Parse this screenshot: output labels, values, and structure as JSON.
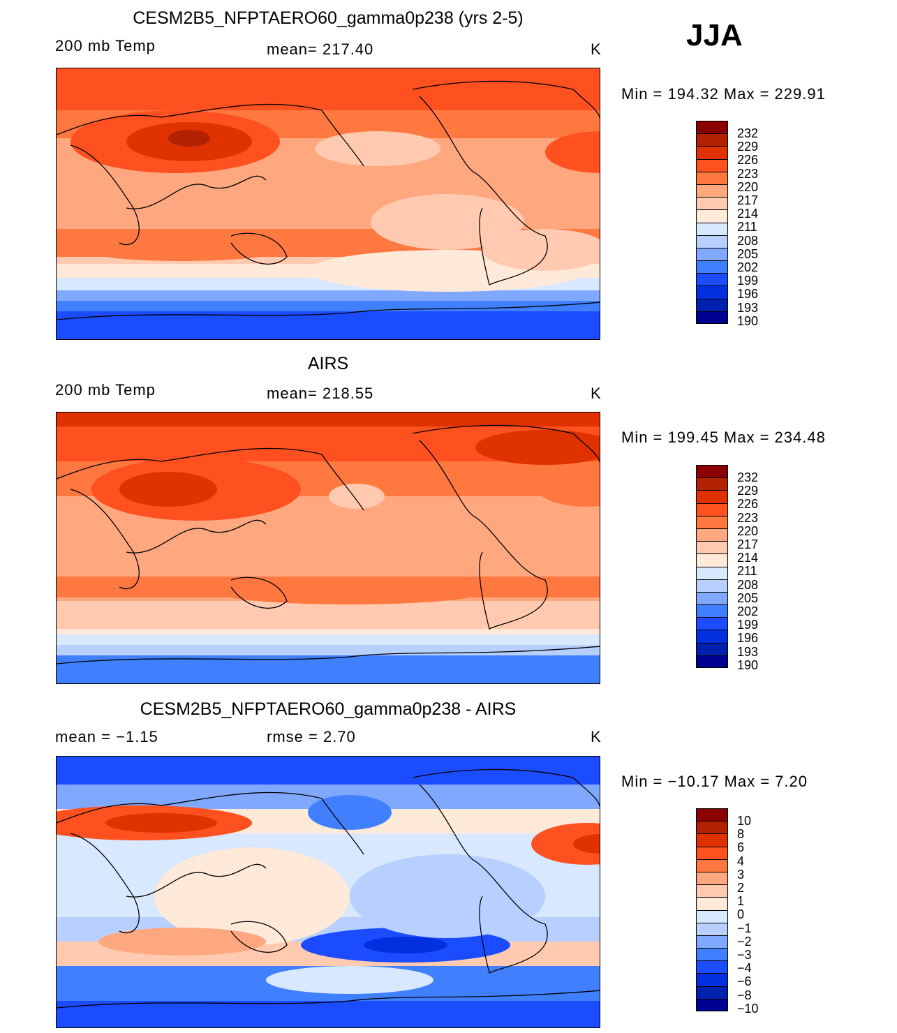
{
  "season": "JJA",
  "colors": [
    "#8b0000",
    "#b22200",
    "#df3200",
    "#ff5020",
    "#ff7840",
    "#ffa880",
    "#ffcab0",
    "#ffe9d8",
    "#d8e8ff",
    "#b8d0ff",
    "#80a8ff",
    "#4080ff",
    "#1c4cff",
    "#0030e0",
    "#0020b0",
    "#000090"
  ],
  "panels": [
    {
      "title": "CESM2B5_NFPTAERO60_gamma0p238 (yrs 2-5)",
      "left_label": "200  mb  Temp",
      "center_label": "mean=  217.40",
      "units": "K",
      "minmax": "Min  =  194.32  Max  =  229.91",
      "levels": [
        "232",
        "229",
        "226",
        "223",
        "220",
        "217",
        "214",
        "211",
        "208",
        "205",
        "202",
        "199",
        "196",
        "193",
        "190"
      ]
    },
    {
      "title": "AIRS",
      "left_label": "200  mb  Temp",
      "center_label": "mean=  218.55",
      "units": "K",
      "minmax": "Min  =  199.45  Max  =  234.48",
      "levels": [
        "232",
        "229",
        "226",
        "223",
        "220",
        "217",
        "214",
        "211",
        "208",
        "205",
        "202",
        "199",
        "196",
        "193",
        "190"
      ]
    },
    {
      "title": "CESM2B5_NFPTAERO60_gamma0p238 - AIRS",
      "left_label": "mean  =    −1.15",
      "center_label": "rmse  =     2.70",
      "units": "K",
      "minmax": "Min  =  −10.17  Max  =     7.20",
      "levels": [
        "10",
        "8",
        "6",
        "4",
        "3",
        "2",
        "1",
        "0",
        "−1",
        "−2",
        "−3",
        "−4",
        "−6",
        "−8",
        "−10"
      ]
    }
  ]
}
